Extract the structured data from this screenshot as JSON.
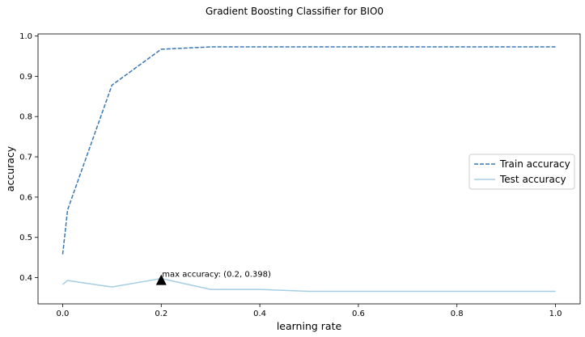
{
  "chart_data": {
    "type": "line",
    "title": "Gradient Boosting Classifier for BIO0",
    "xlabel": "learning rate",
    "ylabel": "accuracy",
    "xlim": [
      -0.05,
      1.05
    ],
    "ylim": [
      0.335,
      1.005
    ],
    "xticks": [
      0.0,
      0.2,
      0.4,
      0.6,
      0.8,
      1.0
    ],
    "xtick_labels": [
      "0.0",
      "0.2",
      "0.4",
      "0.6",
      "0.8",
      "1.0"
    ],
    "yticks": [
      0.4,
      0.5,
      0.6,
      0.7,
      0.8,
      0.9,
      1.0
    ],
    "ytick_labels": [
      "0.4",
      "0.5",
      "0.6",
      "0.7",
      "0.8",
      "0.9",
      "1.0"
    ],
    "grid": false,
    "legend_position": "center-right",
    "series": [
      {
        "name": "Train accuracy",
        "style": "dashed",
        "color": "#3a78b5",
        "x": [
          0.0,
          0.01,
          0.1,
          0.2,
          0.3,
          0.4,
          0.5,
          0.6,
          0.7,
          0.8,
          0.9,
          1.0
        ],
        "y": [
          0.458,
          0.568,
          0.878,
          0.967,
          0.973,
          0.973,
          0.973,
          0.973,
          0.973,
          0.973,
          0.973,
          0.973
        ]
      },
      {
        "name": "Test accuracy",
        "style": "solid",
        "color": "#a6cee3",
        "x": [
          0.0,
          0.01,
          0.1,
          0.2,
          0.3,
          0.4,
          0.5,
          0.6,
          0.7,
          0.8,
          0.9,
          1.0
        ],
        "y": [
          0.383,
          0.393,
          0.377,
          0.398,
          0.371,
          0.371,
          0.366,
          0.366,
          0.366,
          0.366,
          0.366,
          0.366
        ]
      }
    ],
    "annotation": {
      "text": "max accuracy: (0.2, 0.398)",
      "x": 0.2,
      "y": 0.398,
      "marker": "triangle",
      "marker_color": "#000000"
    }
  }
}
